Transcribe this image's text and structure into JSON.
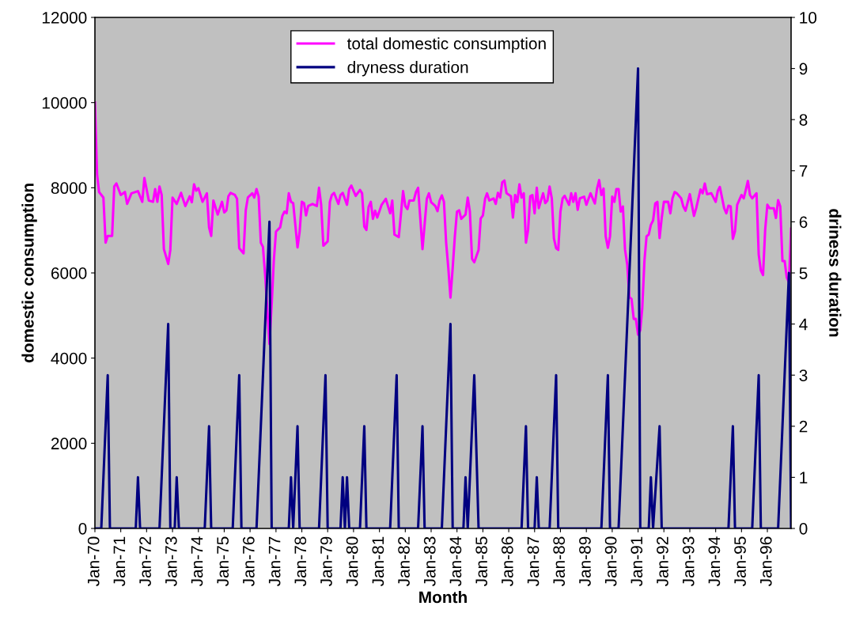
{
  "chart_data": {
    "type": "line",
    "xlabel": "Month",
    "ylabel": "domestic consumption",
    "y2label": "driness duration",
    "xlim": [
      "1970-01",
      "1996-12"
    ],
    "xticks": [
      {
        "value": "1970-01",
        "label": "Jan-70"
      },
      {
        "value": "1971-01",
        "label": "Jan-71"
      },
      {
        "value": "1972-01",
        "label": "Jan-72"
      },
      {
        "value": "1973-01",
        "label": "Jan-73"
      },
      {
        "value": "1974-01",
        "label": "Jan-74"
      },
      {
        "value": "1975-01",
        "label": "Jan-75"
      },
      {
        "value": "1976-01",
        "label": "Jan-76"
      },
      {
        "value": "1977-01",
        "label": "Jan-77"
      },
      {
        "value": "1978-01",
        "label": "Jan-78"
      },
      {
        "value": "1979-01",
        "label": "Jan-79"
      },
      {
        "value": "1980-01",
        "label": "Jan-80"
      },
      {
        "value": "1981-01",
        "label": "Jan-81"
      },
      {
        "value": "1982-01",
        "label": "Jan-82"
      },
      {
        "value": "1983-01",
        "label": "Jan-83"
      },
      {
        "value": "1984-01",
        "label": "Jan-84"
      },
      {
        "value": "1985-01",
        "label": "Jan-85"
      },
      {
        "value": "1986-01",
        "label": "Jan-86"
      },
      {
        "value": "1987-01",
        "label": "Jan-87"
      },
      {
        "value": "1988-01",
        "label": "Jan-88"
      },
      {
        "value": "1989-01",
        "label": "Jan-89"
      },
      {
        "value": "1990-01",
        "label": "Jan-90"
      },
      {
        "value": "1991-01",
        "label": "Jan-91"
      },
      {
        "value": "1992-01",
        "label": "Jan-92"
      },
      {
        "value": "1993-01",
        "label": "Jan-93"
      },
      {
        "value": "1994-01",
        "label": "Jan-94"
      },
      {
        "value": "1995-01",
        "label": "Jan-95"
      },
      {
        "value": "1996-01",
        "label": "Jan-96"
      }
    ],
    "ylim": [
      0,
      12000
    ],
    "yticks": [
      0,
      2000,
      4000,
      6000,
      8000,
      10000,
      12000
    ],
    "y2lim": [
      0,
      10
    ],
    "y2ticks": [
      0,
      1,
      2,
      3,
      4,
      5,
      6,
      7,
      8,
      9,
      10
    ],
    "legend": "top",
    "grid": false,
    "marker": "none",
    "line_style": "solid",
    "series": [
      {
        "name": "total domestic consumption",
        "color": "#ff00ff",
        "x": [
          "1970-01",
          "1970-02",
          "1970-03",
          "1970-05",
          "1970-06",
          "1970-07",
          "1970-09",
          "1970-10",
          "1970-11",
          "1971-01",
          "1971-03",
          "1971-04",
          "1971-06",
          "1971-09",
          "1971-11",
          "1971-12",
          "1972-02",
          "1972-04",
          "1972-05",
          "1972-06",
          "1972-07",
          "1972-08",
          "1972-09",
          "1972-11",
          "1972-12",
          "1973-01",
          "1973-03",
          "1973-05",
          "1973-07",
          "1973-09",
          "1973-10",
          "1973-11",
          "1973-12",
          "1974-01",
          "1974-03",
          "1974-05",
          "1974-06",
          "1974-07",
          "1974-08",
          "1974-10",
          "1974-12",
          "1975-01",
          "1975-02",
          "1975-03",
          "1975-04",
          "1975-06",
          "1975-07",
          "1975-08",
          "1975-10",
          "1975-11",
          "1975-12",
          "1976-02",
          "1976-03",
          "1976-04",
          "1976-05",
          "1976-06",
          "1976-07",
          "1976-08",
          "1976-10",
          "1976-11",
          "1976-12",
          "1977-01",
          "1977-03",
          "1977-04",
          "1977-05",
          "1977-06",
          "1977-07",
          "1977-08",
          "1977-09",
          "1977-11",
          "1977-12",
          "1978-01",
          "1978-02",
          "1978-03",
          "1978-04",
          "1978-06",
          "1978-08",
          "1978-09",
          "1978-10",
          "1978-11",
          "1979-01",
          "1979-02",
          "1979-03",
          "1979-04",
          "1979-06",
          "1979-07",
          "1979-08",
          "1979-10",
          "1979-11",
          "1979-12",
          "1980-02",
          "1980-04",
          "1980-05",
          "1980-06",
          "1980-07",
          "1980-08",
          "1980-09",
          "1980-10",
          "1980-11",
          "1980-12",
          "1981-02",
          "1981-04",
          "1981-06",
          "1981-07",
          "1981-08",
          "1981-10",
          "1981-12",
          "1982-01",
          "1982-02",
          "1982-03",
          "1982-05",
          "1982-06",
          "1982-07",
          "1982-09",
          "1982-11",
          "1982-12",
          "1983-01",
          "1983-03",
          "1983-04",
          "1983-05",
          "1983-06",
          "1983-07",
          "1983-08",
          "1983-09",
          "1983-10",
          "1983-11",
          "1983-12",
          "1984-01",
          "1984-02",
          "1984-03",
          "1984-05",
          "1984-06",
          "1984-07",
          "1984-08",
          "1984-09",
          "1984-11",
          "1984-12",
          "1985-01",
          "1985-02",
          "1985-03",
          "1985-04",
          "1985-06",
          "1985-07",
          "1985-08",
          "1985-09",
          "1985-10",
          "1985-11",
          "1985-12",
          "1986-02",
          "1986-03",
          "1986-04",
          "1986-05",
          "1986-06",
          "1986-07",
          "1986-08",
          "1986-09",
          "1986-10",
          "1986-11",
          "1986-12",
          "1987-01",
          "1987-02",
          "1987-03",
          "1987-05",
          "1987-06",
          "1987-07",
          "1987-08",
          "1987-09",
          "1987-10",
          "1987-11",
          "1987-12",
          "1988-01",
          "1988-02",
          "1988-03",
          "1988-05",
          "1988-06",
          "1988-07",
          "1988-08",
          "1988-09",
          "1988-10",
          "1988-12",
          "1989-01",
          "1989-03",
          "1989-05",
          "1989-06",
          "1989-07",
          "1989-08",
          "1989-09",
          "1989-10",
          "1989-11",
          "1989-12",
          "1990-01",
          "1990-02",
          "1990-03",
          "1990-04",
          "1990-05",
          "1990-06",
          "1990-07",
          "1990-08",
          "1990-09",
          "1990-10",
          "1990-11",
          "1990-12",
          "1991-01",
          "1991-02",
          "1991-03",
          "1991-04",
          "1991-05",
          "1991-06",
          "1991-07",
          "1991-08",
          "1991-09",
          "1991-10",
          "1991-11",
          "1991-12",
          "1992-01",
          "1992-03",
          "1992-04",
          "1992-05",
          "1992-06",
          "1992-07",
          "1992-09",
          "1992-10",
          "1992-11",
          "1993-01",
          "1993-03",
          "1993-04",
          "1993-06",
          "1993-07",
          "1993-08",
          "1993-09",
          "1993-11",
          "1994-01",
          "1994-02",
          "1994-03",
          "1994-05",
          "1994-06",
          "1994-07",
          "1994-08",
          "1994-09",
          "1994-10",
          "1994-11",
          "1995-01",
          "1995-02",
          "1995-03",
          "1995-04",
          "1995-05",
          "1995-06",
          "1995-08",
          "1995-09",
          "1995-10",
          "1995-11",
          "1995-12",
          "1996-01",
          "1996-02",
          "1996-04",
          "1996-05",
          "1996-06",
          "1996-07",
          "1996-08",
          "1996-09",
          "1996-10",
          "1996-11",
          "1996-12"
        ],
        "values": [
          10000,
          8300,
          7900,
          7770,
          6710,
          6870,
          6870,
          8030,
          8100,
          7830,
          7900,
          7620,
          7870,
          7920,
          7670,
          8230,
          7700,
          7670,
          7970,
          7670,
          8030,
          7830,
          6560,
          6210,
          6540,
          7770,
          7620,
          7880,
          7570,
          7800,
          7660,
          8080,
          7930,
          7990,
          7670,
          7870,
          7070,
          6870,
          7700,
          7370,
          7670,
          7420,
          7470,
          7800,
          7880,
          7830,
          7740,
          6580,
          6460,
          7470,
          7770,
          7870,
          7770,
          7970,
          7800,
          6710,
          6610,
          5950,
          4330,
          5250,
          6280,
          6970,
          7070,
          7340,
          7440,
          7400,
          7870,
          7670,
          7640,
          6600,
          6970,
          7670,
          7640,
          7350,
          7570,
          7620,
          7570,
          8000,
          7600,
          6640,
          6740,
          7670,
          7830,
          7880,
          7620,
          7830,
          7880,
          7600,
          7970,
          8050,
          7810,
          7950,
          7870,
          7090,
          7010,
          7550,
          7670,
          7270,
          7460,
          7300,
          7600,
          7740,
          7400,
          7700,
          6900,
          6840,
          7920,
          7570,
          7500,
          7700,
          7700,
          7900,
          8000,
          6560,
          7740,
          7870,
          7660,
          7570,
          7450,
          7700,
          7820,
          7670,
          6710,
          6110,
          5420,
          6110,
          6840,
          7440,
          7470,
          7270,
          7370,
          7770,
          7440,
          6330,
          6250,
          6540,
          7280,
          7350,
          7740,
          7870,
          7700,
          7750,
          7620,
          7880,
          7770,
          8130,
          8170,
          7870,
          7800,
          7300,
          7830,
          7660,
          8080,
          7770,
          7870,
          6710,
          7010,
          7800,
          7830,
          7400,
          8000,
          7520,
          7870,
          7640,
          7700,
          8030,
          7750,
          6810,
          6580,
          6540,
          7440,
          7750,
          7810,
          7600,
          7870,
          7670,
          7870,
          7480,
          7750,
          7790,
          7600,
          7870,
          7630,
          7980,
          8180,
          7830,
          7980,
          6860,
          6590,
          6860,
          7790,
          7670,
          7970,
          7970,
          7440,
          7560,
          6550,
          6200,
          5430,
          5390,
          4920,
          4920,
          4550,
          4650,
          5160,
          6280,
          6860,
          6900,
          7130,
          7230,
          7630,
          7670,
          6820,
          7290,
          7670,
          7670,
          7400,
          7750,
          7900,
          7870,
          7750,
          7560,
          7460,
          7850,
          7340,
          7520,
          7960,
          7870,
          8100,
          7850,
          7870,
          7670,
          7930,
          8020,
          7520,
          7400,
          7580,
          7560,
          6800,
          6980,
          7600,
          7830,
          7750,
          7940,
          8160,
          7830,
          7750,
          7870,
          6430,
          6060,
          5950,
          7010,
          7600,
          7520,
          7520,
          7290,
          7710,
          7560,
          6280,
          6280,
          5890,
          5780,
          7040
        ]
      },
      {
        "name": "dryness duration",
        "color": "#000080",
        "axis": "y2",
        "x": [
          "1970-01",
          "1970-04",
          "1970-07",
          "1970-08",
          "1971-08",
          "1971-09",
          "1971-10",
          "1972-07",
          "1972-11",
          "1972-12",
          "1973-02",
          "1973-03",
          "1973-04",
          "1974-04",
          "1974-06",
          "1974-07",
          "1975-05",
          "1975-08",
          "1975-09",
          "1976-04",
          "1976-10",
          "1976-11",
          "1977-07",
          "1977-08",
          "1977-09",
          "1977-11",
          "1977-12",
          "1978-09",
          "1978-12",
          "1979-01",
          "1979-07",
          "1979-08",
          "1979-09",
          "1979-10",
          "1979-11",
          "1980-04",
          "1980-06",
          "1980-07",
          "1981-06",
          "1981-09",
          "1981-10",
          "1982-07",
          "1982-09",
          "1982-10",
          "1983-06",
          "1983-10",
          "1983-11",
          "1984-04",
          "1984-05",
          "1984-06",
          "1984-09",
          "1984-11",
          "1986-07",
          "1986-09",
          "1986-10",
          "1987-01",
          "1987-02",
          "1987-03",
          "1987-08",
          "1987-11",
          "1987-12",
          "1989-08",
          "1989-11",
          "1989-12",
          "1990-04",
          "1991-01",
          "1991-02",
          "1991-06",
          "1991-07",
          "1991-08",
          "1991-11",
          "1991-12",
          "1994-07",
          "1994-09",
          "1994-10",
          "1995-06",
          "1995-09",
          "1995-10",
          "1996-06",
          "1996-11",
          "1996-12"
        ],
        "values": [
          0,
          0,
          3,
          0,
          0,
          1,
          0,
          0,
          4,
          0,
          0,
          1,
          0,
          0,
          2,
          0,
          0,
          3,
          0,
          0,
          6,
          0,
          0,
          1,
          0,
          2,
          0,
          0,
          3,
          0,
          0,
          1,
          0,
          1,
          0,
          0,
          2,
          0,
          0,
          3,
          0,
          0,
          2,
          0,
          0,
          4,
          0,
          0,
          1,
          0,
          3,
          0,
          0,
          2,
          0,
          0,
          1,
          0,
          0,
          3,
          0,
          0,
          3,
          0,
          0,
          9,
          0,
          0,
          1,
          0,
          2,
          0,
          0,
          2,
          0,
          0,
          3,
          0,
          0,
          5,
          0
        ]
      }
    ]
  }
}
